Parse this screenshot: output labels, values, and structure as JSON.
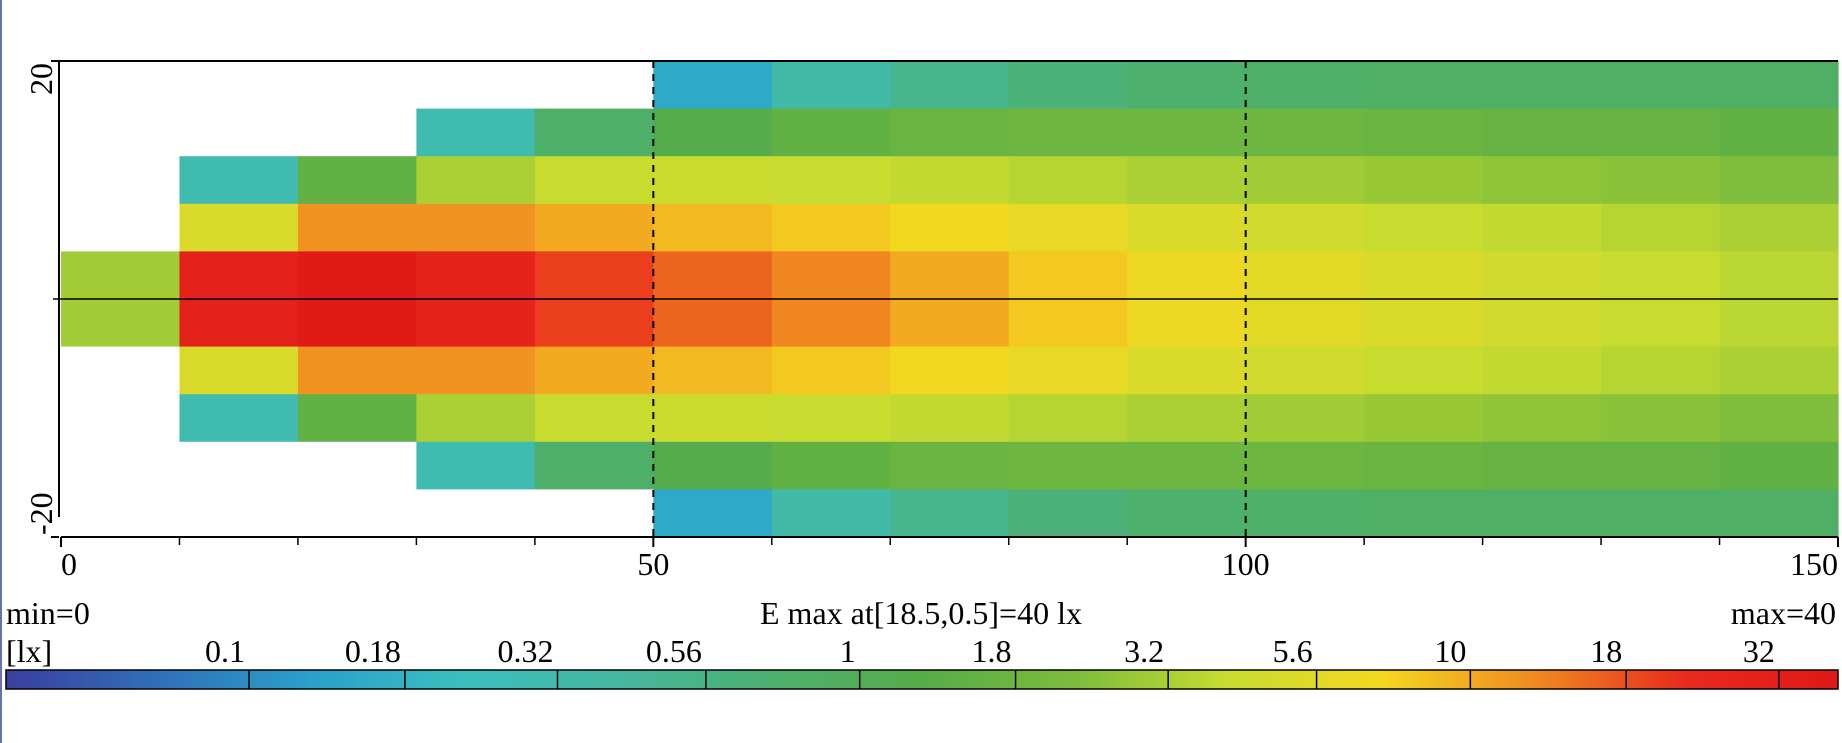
{
  "chart_data": {
    "type": "heatmap",
    "x": [
      5,
      15,
      25,
      35,
      45,
      55,
      65,
      75,
      85,
      95,
      105,
      115,
      125,
      135,
      145
    ],
    "y": [
      18,
      14,
      10,
      6,
      2,
      -2,
      -6,
      -10,
      -14,
      -18
    ],
    "cell_size": [
      10,
      4
    ],
    "z": [
      [
        0,
        0,
        0,
        0,
        0,
        0.15,
        0.35,
        0.5,
        0.65,
        0.75,
        0.8,
        0.85,
        0.85,
        0.85,
        0.85
      ],
      [
        0,
        0,
        0,
        0.3,
        0.8,
        1.2,
        1.5,
        1.7,
        1.8,
        1.8,
        1.8,
        1.7,
        1.6,
        1.6,
        1.5
      ],
      [
        0,
        0.3,
        1.5,
        3.2,
        4,
        4.2,
        4,
        3.8,
        3.5,
        3.2,
        3,
        2.8,
        2.6,
        2.5,
        2.3
      ],
      [
        0,
        5,
        12,
        12,
        10,
        9,
        8,
        7,
        6,
        5,
        4.5,
        4,
        3.8,
        3.5,
        3.2
      ],
      [
        3,
        30,
        38,
        28,
        20,
        16,
        13,
        10,
        8,
        6.5,
        5.5,
        5,
        4.5,
        4,
        3.6
      ],
      [
        3,
        30,
        38,
        28,
        20,
        16,
        13,
        10,
        8,
        6.5,
        5.5,
        5,
        4.5,
        4,
        3.6
      ],
      [
        0,
        5,
        12,
        12,
        10,
        9,
        8,
        7,
        6,
        5,
        4.5,
        4,
        3.8,
        3.5,
        3.2
      ],
      [
        0,
        0.3,
        1.5,
        3.2,
        4,
        4.2,
        4,
        3.8,
        3.5,
        3.2,
        3,
        2.8,
        2.6,
        2.5,
        2.3
      ],
      [
        0,
        0,
        0,
        0.3,
        0.8,
        1.2,
        1.5,
        1.7,
        1.8,
        1.8,
        1.8,
        1.7,
        1.6,
        1.6,
        1.5
      ],
      [
        0,
        0,
        0,
        0,
        0,
        0.15,
        0.35,
        0.5,
        0.65,
        0.75,
        0.8,
        0.85,
        0.85,
        0.85,
        0.85
      ]
    ],
    "xlim": [
      0,
      150
    ],
    "ylim": [
      -20,
      20
    ],
    "xticks": [
      0,
      50,
      100,
      150
    ],
    "xminorticks": [
      10,
      20,
      30,
      40,
      60,
      70,
      80,
      90,
      110,
      120,
      130,
      140
    ],
    "yticks": [
      -20,
      20
    ],
    "annotations": {
      "min": "min=0",
      "max_at": "E max at[18.5,0.5]=40 lx",
      "max": "max=40"
    },
    "colorbar": {
      "unit": "[lx]",
      "log_scale": true,
      "clim": [
        0.04,
        40
      ],
      "ticks": [
        0.1,
        0.18,
        0.32,
        0.56,
        1,
        1.8,
        3.2,
        5.6,
        10,
        18,
        32
      ],
      "colormap": [
        "#3a3f9e",
        "#3070b8",
        "#2aa0cc",
        "#3bbfbf",
        "#44b8a0",
        "#4cb070",
        "#56ac48",
        "#7cbc3c",
        "#c8dc30",
        "#f4d820",
        "#f08c20",
        "#e82a1c",
        "#e01818"
      ]
    }
  }
}
